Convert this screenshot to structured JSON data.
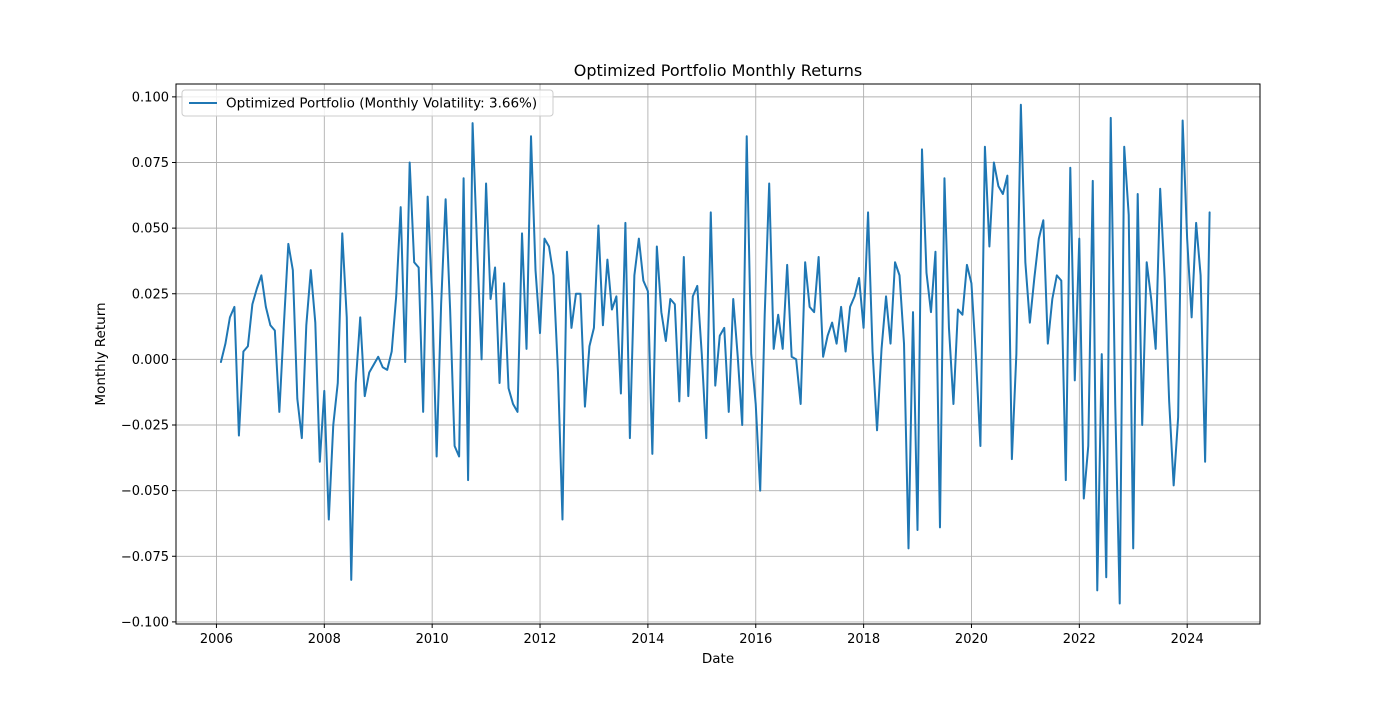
{
  "colors": {
    "line": "#1f77b4",
    "grid": "#b0b0b0",
    "axis": "#000000",
    "legend_border": "#cccccc"
  },
  "chart_data": {
    "type": "line",
    "title": "Optimized Portfolio Monthly Returns",
    "xlabel": "Date",
    "ylabel": "Monthly Return",
    "xlim": [
      2005.25,
      2025.35
    ],
    "ylim": [
      -0.1008,
      0.1049
    ],
    "grid": true,
    "legend_position": "top-left",
    "x_ticks": [
      2006,
      2008,
      2010,
      2012,
      2014,
      2016,
      2018,
      2020,
      2022,
      2024
    ],
    "x_tick_labels": [
      "2006",
      "2008",
      "2010",
      "2012",
      "2014",
      "2016",
      "2018",
      "2020",
      "2022",
      "2024"
    ],
    "y_ticks": [
      -0.1,
      -0.075,
      -0.05,
      -0.025,
      0.0,
      0.025,
      0.05,
      0.075,
      0.1
    ],
    "y_tick_labels": [
      "−0.100",
      "−0.075",
      "−0.050",
      "−0.025",
      "0.000",
      "0.025",
      "0.050",
      "0.075",
      "0.100"
    ],
    "series": [
      {
        "name": "Optimized Portfolio (Monthly Volatility: 3.66%)",
        "color": "#1f77b4",
        "x_start_year": 2006.083,
        "x_step_years": 0.08333,
        "values": [
          -0.001,
          0.006,
          0.016,
          0.02,
          -0.029,
          0.003,
          0.005,
          0.021,
          0.027,
          0.032,
          0.02,
          0.013,
          0.011,
          -0.02,
          0.013,
          0.044,
          0.034,
          -0.015,
          -0.03,
          0.013,
          0.034,
          0.014,
          -0.039,
          -0.012,
          -0.061,
          -0.025,
          -0.009,
          0.048,
          0.016,
          -0.084,
          -0.009,
          0.016,
          -0.014,
          -0.005,
          -0.002,
          0.001,
          -0.003,
          -0.004,
          0.003,
          0.024,
          0.058,
          -0.001,
          0.075,
          0.037,
          0.035,
          -0.02,
          0.062,
          0.024,
          -0.037,
          0.021,
          0.061,
          0.019,
          -0.033,
          -0.037,
          0.069,
          -0.046,
          0.09,
          0.043,
          0.0,
          0.067,
          0.023,
          0.035,
          -0.009,
          0.029,
          -0.011,
          -0.017,
          -0.02,
          0.048,
          0.004,
          0.085,
          0.034,
          0.01,
          0.046,
          0.043,
          0.032,
          -0.005,
          -0.061,
          0.041,
          0.012,
          0.025,
          0.025,
          -0.018,
          0.005,
          0.012,
          0.051,
          0.013,
          0.038,
          0.019,
          0.024,
          -0.013,
          0.052,
          -0.03,
          0.032,
          0.046,
          0.03,
          0.026,
          -0.036,
          0.043,
          0.018,
          0.007,
          0.023,
          0.021,
          -0.016,
          0.039,
          -0.014,
          0.024,
          0.028,
          0.002,
          -0.03,
          0.056,
          -0.01,
          0.009,
          0.012,
          -0.02,
          0.023,
          0.001,
          -0.025,
          0.085,
          0.002,
          -0.017,
          -0.05,
          0.017,
          0.067,
          0.004,
          0.017,
          0.004,
          0.036,
          0.001,
          0.0,
          -0.017,
          0.037,
          0.02,
          0.018,
          0.039,
          0.001,
          0.009,
          0.014,
          0.006,
          0.02,
          0.003,
          0.02,
          0.024,
          0.031,
          0.012,
          0.056,
          0.003,
          -0.027,
          0.004,
          0.024,
          0.006,
          0.037,
          0.032,
          0.006,
          -0.072,
          0.018,
          -0.065,
          0.08,
          0.033,
          0.018,
          0.041,
          -0.064,
          0.069,
          0.012,
          -0.017,
          0.019,
          0.017,
          0.036,
          0.029,
          0.001,
          -0.033,
          0.081,
          0.043,
          0.075,
          0.066,
          0.063,
          0.07,
          -0.038,
          0.002,
          0.097,
          0.037,
          0.014,
          0.031,
          0.046,
          0.053,
          0.006,
          0.023,
          0.032,
          0.03,
          -0.046,
          0.073,
          -0.008,
          0.046,
          -0.053,
          -0.033,
          0.068,
          -0.088,
          0.002,
          -0.083,
          0.092,
          -0.017,
          -0.093,
          0.081,
          0.055,
          -0.072,
          0.063,
          -0.025,
          0.037,
          0.023,
          0.004,
          0.065,
          0.031,
          -0.016,
          -0.048,
          -0.022,
          0.091,
          0.046,
          0.016,
          0.052,
          0.032,
          -0.039,
          0.056
        ]
      }
    ]
  }
}
